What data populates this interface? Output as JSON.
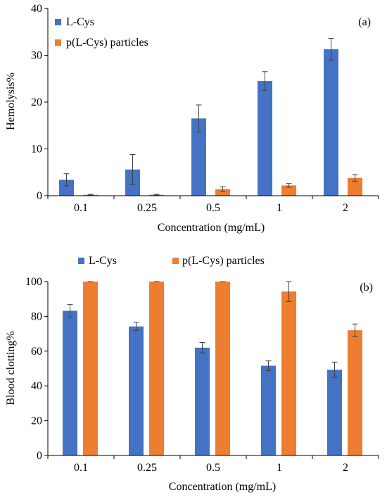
{
  "colors": {
    "l_cys": "#4472C4",
    "p_l_cys": "#ED7D31",
    "axis": "#000000"
  },
  "chart_data": [
    {
      "type": "bar",
      "panel_label": "(a)",
      "xlabel": "Concentration (mg/mL)",
      "ylabel": "Hemolysis%",
      "categories": [
        "0.1",
        "0.25",
        "0.5",
        "1",
        "2"
      ],
      "ylim": [
        0,
        40
      ],
      "yticks": [
        0,
        10,
        20,
        30,
        40
      ],
      "grid": false,
      "legend_position": "top-left",
      "series": [
        {
          "name": "L-Cys",
          "values": [
            3.4,
            5.6,
            16.5,
            24.5,
            31.3
          ],
          "errors": [
            1.3,
            3.2,
            2.9,
            2.0,
            2.3
          ]
        },
        {
          "name": "p(L-Cys) particles",
          "values": [
            0.2,
            0.2,
            1.4,
            2.2,
            3.8
          ],
          "errors": [
            0.1,
            0.1,
            0.5,
            0.4,
            0.7
          ]
        }
      ]
    },
    {
      "type": "bar",
      "panel_label": "(b)",
      "xlabel": "Concentration (mg/mL)",
      "ylabel": "Blood clotting%",
      "categories": [
        "0.1",
        "0.25",
        "0.5",
        "1",
        "2"
      ],
      "ylim": [
        0,
        100
      ],
      "yticks": [
        0,
        20,
        40,
        60,
        80,
        100
      ],
      "grid": false,
      "legend_position": "top",
      "series": [
        {
          "name": "L-Cys",
          "values": [
            83.2,
            74.2,
            62.0,
            51.6,
            49.3
          ],
          "errors": [
            3.6,
            2.4,
            3.0,
            2.8,
            4.4
          ]
        },
        {
          "name": "p(L-Cys) particles",
          "values": [
            100,
            100,
            100,
            94.3,
            72.0
          ],
          "errors": [
            0,
            0,
            0,
            5.8,
            3.6
          ]
        }
      ]
    }
  ]
}
